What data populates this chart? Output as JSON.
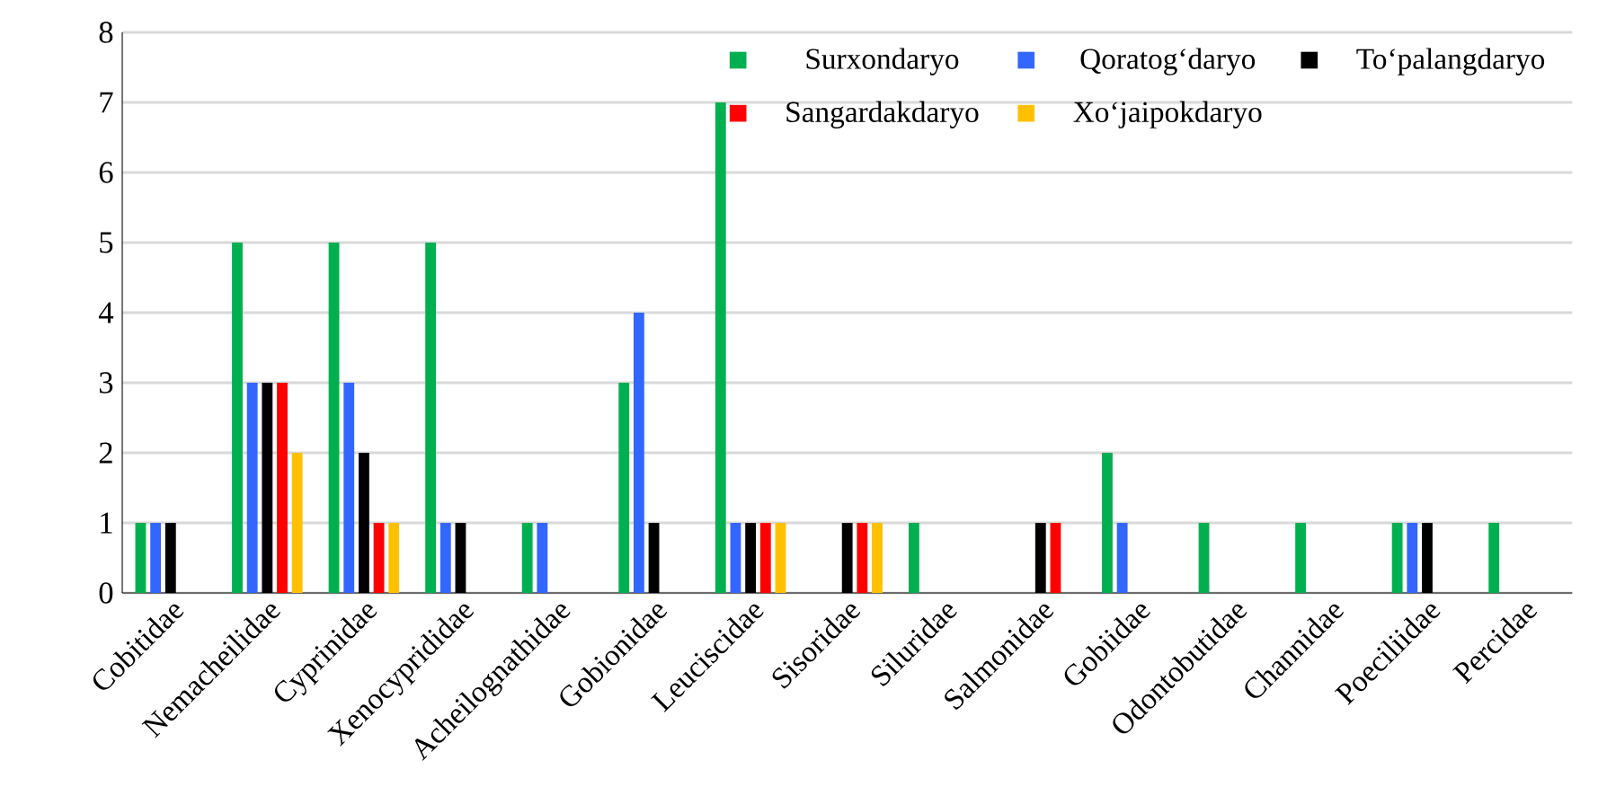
{
  "chart_data": {
    "type": "bar",
    "categories": [
      "Cobitidae",
      "Nemacheilidae",
      "Cyprinidae",
      "Xenocyprididae",
      "Acheilognathidae",
      "Gobionidae",
      "Leuciscidae",
      "Sisoridae",
      "Siluridae",
      "Salmonidae",
      "Gobiidae",
      "Odontobutidae",
      "Channidae",
      "Poeciliidae",
      "Percidae"
    ],
    "series": [
      {
        "name": "Surxondaryo",
        "color": "#00b050",
        "values": [
          1,
          5,
          5,
          5,
          1,
          3,
          7,
          0,
          1,
          0,
          2,
          1,
          1,
          1,
          1
        ]
      },
      {
        "name": "Qoratog‘daryo",
        "color": "#3366ff",
        "values": [
          1,
          3,
          3,
          1,
          1,
          4,
          1,
          0,
          0,
          0,
          1,
          0,
          0,
          1,
          0
        ]
      },
      {
        "name": "To‘palangdaryo",
        "color": "#000000",
        "values": [
          1,
          3,
          2,
          1,
          0,
          1,
          1,
          1,
          0,
          1,
          0,
          0,
          0,
          1,
          0
        ]
      },
      {
        "name": "Sangardakdaryo",
        "color": "#ff0000",
        "values": [
          0,
          3,
          1,
          0,
          0,
          0,
          1,
          1,
          0,
          1,
          0,
          0,
          0,
          0,
          0
        ]
      },
      {
        "name": "Xo‘jaipokdaryo",
        "color": "#ffc000",
        "values": [
          0,
          2,
          1,
          0,
          0,
          0,
          1,
          1,
          0,
          0,
          0,
          0,
          0,
          0,
          0
        ]
      }
    ],
    "ylim": [
      0,
      8
    ],
    "yticks": [
      0,
      1,
      2,
      3,
      4,
      5,
      6,
      7,
      8
    ],
    "grid": "y",
    "legend": "top right"
  }
}
